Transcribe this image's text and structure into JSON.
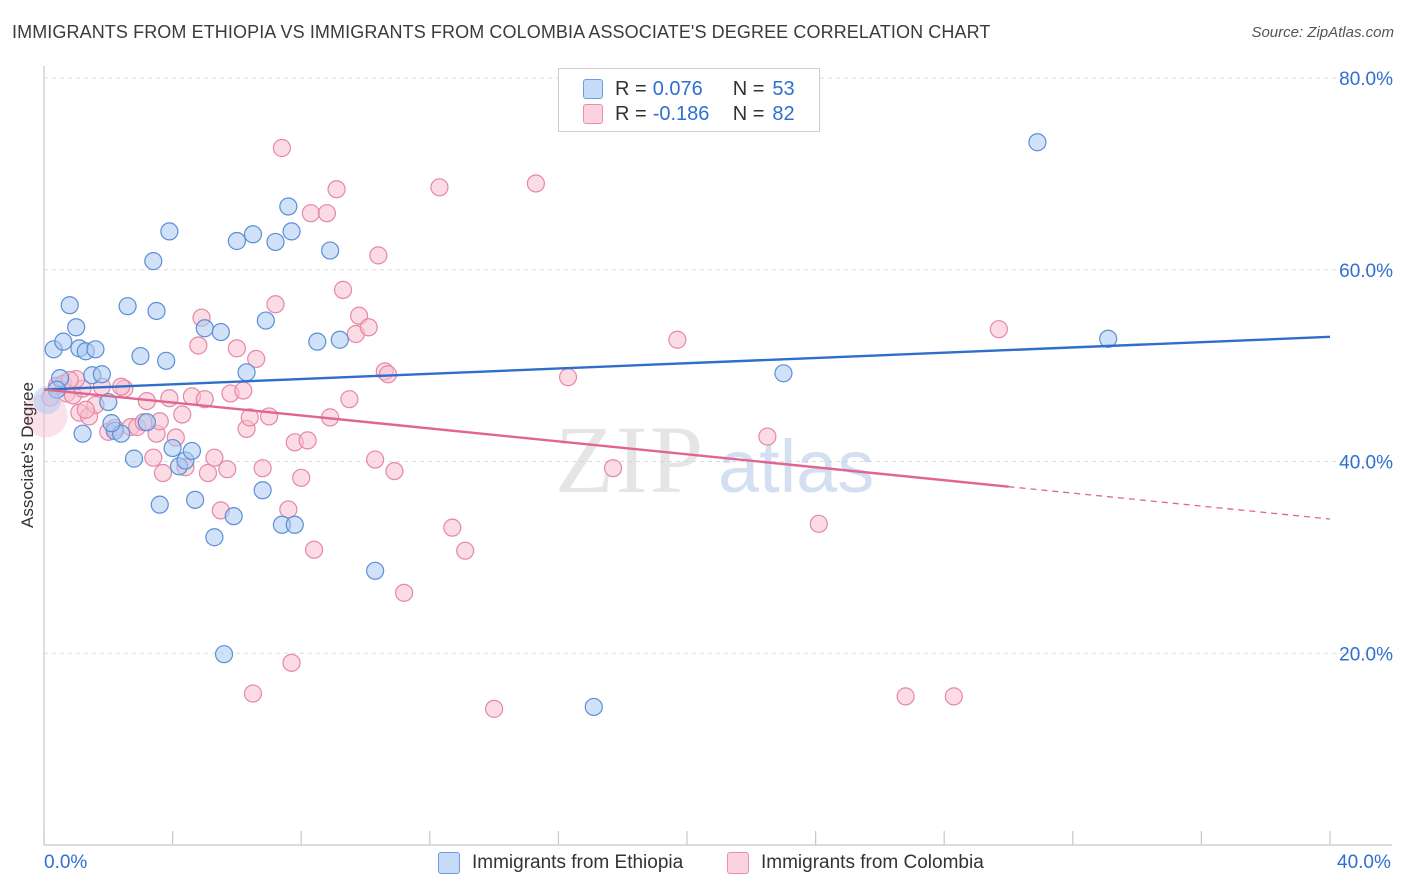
{
  "title": "IMMIGRANTS FROM ETHIOPIA VS IMMIGRANTS FROM COLOMBIA ASSOCIATE'S DEGREE CORRELATION CHART",
  "source": "Source: ZipAtlas.com",
  "watermark": {
    "zip": "ZIP",
    "atlas": "atlas"
  },
  "colors": {
    "ethiopia_fill": "#a9c8f2",
    "ethiopia_stroke": "#5b8fd6",
    "ethiopia_line": "#2e6fcc",
    "colombia_fill": "#f7bfd0",
    "colombia_stroke": "#e687a6",
    "colombia_line": "#e06690",
    "accent_text": "#2f6fcf"
  },
  "legend": {
    "rows": [
      {
        "r_label": "R =",
        "r_value": "0.076",
        "n_label": "N =",
        "n_value": "53"
      },
      {
        "r_label": "R =",
        "r_value": "-0.186",
        "n_label": "N =",
        "n_value": "82"
      }
    ]
  },
  "chart_data": {
    "type": "scatter",
    "xlabel": "",
    "ylabel": "Associate's Degree",
    "xlim": [
      0,
      40
    ],
    "ylim": [
      0,
      80
    ],
    "x_tick_labels": [
      "0.0%",
      "40.0%"
    ],
    "y_ticks": [
      20,
      40,
      60,
      80
    ],
    "y_tick_labels": [
      "20.0%",
      "40.0%",
      "60.0%",
      "80.0%"
    ],
    "grid": true,
    "legend_position": "bottom",
    "series": [
      {
        "name": "Immigrants from Ethiopia",
        "trend": {
          "x": [
            0,
            40
          ],
          "y": [
            47.5,
            53.0
          ],
          "dashed_from_x": null
        },
        "points": [
          [
            0.3,
            51.7
          ],
          [
            0.5,
            48.7
          ],
          [
            0.6,
            52.5
          ],
          [
            0.8,
            56.3
          ],
          [
            1.0,
            54.0
          ],
          [
            1.1,
            51.8
          ],
          [
            1.3,
            51.5
          ],
          [
            1.5,
            49.0
          ],
          [
            1.6,
            51.7
          ],
          [
            1.8,
            49.1
          ],
          [
            2.0,
            46.2
          ],
          [
            2.2,
            43.2
          ],
          [
            2.4,
            42.9
          ],
          [
            2.6,
            56.2
          ],
          [
            2.8,
            40.3
          ],
          [
            3.0,
            51.0
          ],
          [
            3.2,
            44.1
          ],
          [
            3.4,
            60.9
          ],
          [
            3.5,
            55.7
          ],
          [
            3.6,
            35.5
          ],
          [
            3.8,
            50.5
          ],
          [
            3.9,
            64.0
          ],
          [
            4.0,
            41.4
          ],
          [
            4.2,
            39.5
          ],
          [
            4.4,
            40.1
          ],
          [
            4.6,
            41.1
          ],
          [
            4.7,
            36.0
          ],
          [
            5.0,
            53.9
          ],
          [
            5.3,
            32.1
          ],
          [
            5.5,
            53.5
          ],
          [
            5.6,
            19.9
          ],
          [
            5.9,
            34.3
          ],
          [
            6.0,
            63.0
          ],
          [
            6.3,
            49.3
          ],
          [
            6.5,
            63.7
          ],
          [
            6.8,
            37.0
          ],
          [
            6.9,
            54.7
          ],
          [
            7.2,
            62.9
          ],
          [
            7.4,
            33.4
          ],
          [
            7.6,
            66.6
          ],
          [
            7.7,
            64.0
          ],
          [
            7.8,
            33.4
          ],
          [
            8.5,
            52.5
          ],
          [
            8.9,
            62.0
          ],
          [
            9.2,
            52.7
          ],
          [
            10.3,
            28.6
          ],
          [
            1.2,
            42.9
          ],
          [
            2.1,
            44.0
          ],
          [
            0.4,
            47.5
          ],
          [
            17.1,
            14.4
          ],
          [
            23.0,
            49.2
          ],
          [
            30.9,
            73.3
          ],
          [
            33.1,
            52.8
          ]
        ]
      },
      {
        "name": "Immigrants from Colombia",
        "trend": {
          "x": [
            0,
            40
          ],
          "y": [
            47.5,
            34.0
          ],
          "dashed_from_x": 30.0
        },
        "points": [
          [
            0.2,
            46.7
          ],
          [
            0.4,
            47.9
          ],
          [
            0.6,
            48.1
          ],
          [
            0.7,
            47.1
          ],
          [
            0.9,
            46.9
          ],
          [
            1.1,
            45.1
          ],
          [
            1.2,
            47.6
          ],
          [
            1.4,
            44.7
          ],
          [
            1.6,
            45.9
          ],
          [
            1.8,
            47.8
          ],
          [
            2.0,
            43.1
          ],
          [
            2.2,
            43.5
          ],
          [
            2.5,
            47.6
          ],
          [
            2.7,
            43.6
          ],
          [
            2.9,
            43.6
          ],
          [
            3.1,
            44.1
          ],
          [
            3.2,
            46.3
          ],
          [
            3.4,
            40.4
          ],
          [
            3.5,
            42.9
          ],
          [
            3.7,
            38.8
          ],
          [
            3.9,
            46.6
          ],
          [
            4.1,
            42.5
          ],
          [
            4.3,
            44.9
          ],
          [
            4.4,
            39.4
          ],
          [
            4.6,
            46.8
          ],
          [
            4.8,
            52.1
          ],
          [
            4.9,
            55.0
          ],
          [
            5.1,
            38.8
          ],
          [
            5.3,
            40.4
          ],
          [
            5.5,
            34.9
          ],
          [
            5.7,
            39.2
          ],
          [
            5.8,
            47.1
          ],
          [
            6.0,
            51.8
          ],
          [
            6.2,
            47.4
          ],
          [
            6.3,
            43.4
          ],
          [
            6.4,
            44.6
          ],
          [
            6.6,
            50.7
          ],
          [
            6.8,
            39.3
          ],
          [
            7.0,
            44.7
          ],
          [
            7.2,
            56.4
          ],
          [
            7.4,
            72.7
          ],
          [
            7.6,
            35.0
          ],
          [
            7.7,
            19.0
          ],
          [
            7.8,
            42.0
          ],
          [
            8.0,
            38.3
          ],
          [
            8.2,
            42.2
          ],
          [
            8.3,
            65.9
          ],
          [
            8.4,
            30.8
          ],
          [
            8.8,
            65.9
          ],
          [
            8.9,
            44.6
          ],
          [
            9.1,
            68.4
          ],
          [
            9.3,
            57.9
          ],
          [
            9.5,
            46.5
          ],
          [
            9.7,
            53.3
          ],
          [
            9.8,
            55.2
          ],
          [
            10.1,
            54.0
          ],
          [
            10.3,
            40.2
          ],
          [
            10.4,
            61.5
          ],
          [
            10.6,
            49.4
          ],
          [
            10.7,
            49.1
          ],
          [
            10.9,
            39.0
          ],
          [
            11.2,
            26.3
          ],
          [
            12.3,
            68.6
          ],
          [
            12.7,
            33.1
          ],
          [
            13.1,
            30.7
          ],
          [
            14.0,
            14.2
          ],
          [
            15.3,
            69.0
          ],
          [
            16.3,
            48.8
          ],
          [
            17.7,
            39.3
          ],
          [
            19.7,
            52.7
          ],
          [
            22.5,
            42.6
          ],
          [
            24.1,
            33.5
          ],
          [
            26.8,
            15.5
          ],
          [
            28.3,
            15.5
          ],
          [
            29.7,
            53.8
          ],
          [
            6.5,
            15.8
          ],
          [
            5.0,
            46.5
          ],
          [
            3.6,
            44.2
          ],
          [
            1.0,
            48.6
          ],
          [
            0.8,
            48.5
          ],
          [
            2.4,
            47.8
          ],
          [
            1.3,
            45.4
          ]
        ]
      }
    ]
  },
  "bottom_legend": {
    "ethiopia": "Immigrants from Ethiopia",
    "colombia": "Immigrants from Colombia"
  }
}
